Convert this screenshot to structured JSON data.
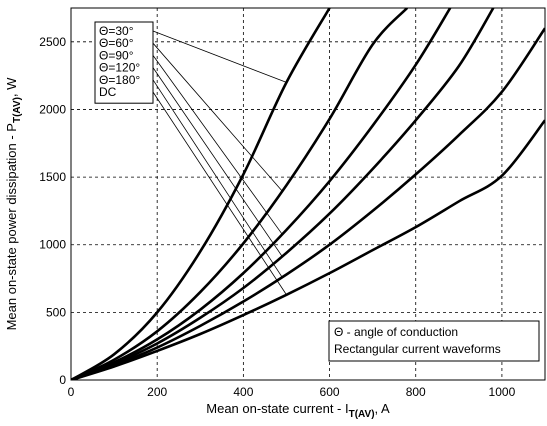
{
  "chart_data": {
    "type": "line",
    "xlabel_main": "Mean on-state current - I",
    "xlabel_sub": "T(AV)",
    "xlabel_unit": ", A",
    "ylabel_main": "Mean on-state power dissipation - P",
    "ylabel_sub": "T(AV)",
    "ylabel_unit": ", W",
    "xlim": [
      0,
      1100
    ],
    "ylim": [
      0,
      2750
    ],
    "xticks": [
      0,
      200,
      400,
      600,
      800,
      1000
    ],
    "yticks": [
      0,
      500,
      1000,
      1500,
      2000,
      2500
    ],
    "grid": true,
    "legend": {
      "position": "top-left",
      "entries": [
        "Θ=30°",
        "Θ=60°",
        "Θ=90°",
        "Θ=120°",
        "Θ=180°",
        "DC"
      ]
    },
    "annotation": {
      "position": "bottom-right",
      "lines": [
        "Θ - angle of conduction",
        "Rectangular current waveforms"
      ]
    },
    "series": [
      {
        "name": "Θ=30°",
        "x": [
          0,
          100,
          200,
          300,
          400,
          500,
          600
        ],
        "y": [
          0,
          190,
          500,
          950,
          1520,
          2200,
          2750
        ]
      },
      {
        "name": "Θ=60°",
        "x": [
          0,
          100,
          200,
          300,
          400,
          500,
          600,
          700,
          780
        ],
        "y": [
          0,
          150,
          360,
          650,
          1010,
          1440,
          1930,
          2480,
          2750
        ]
      },
      {
        "name": "Θ=90°",
        "x": [
          0,
          100,
          200,
          300,
          400,
          500,
          600,
          700,
          800,
          880
        ],
        "y": [
          0,
          130,
          300,
          520,
          790,
          1110,
          1470,
          1880,
          2330,
          2750
        ]
      },
      {
        "name": "Θ=120°",
        "x": [
          0,
          100,
          200,
          300,
          400,
          500,
          600,
          700,
          800,
          900,
          980
        ],
        "y": [
          0,
          120,
          270,
          460,
          680,
          940,
          1230,
          1560,
          1920,
          2320,
          2750
        ]
      },
      {
        "name": "Θ=180°",
        "x": [
          0,
          100,
          200,
          300,
          400,
          500,
          600,
          700,
          800,
          900,
          1000,
          1100
        ],
        "y": [
          0,
          110,
          240,
          400,
          580,
          780,
          1000,
          1250,
          1520,
          1810,
          2130,
          2600
        ]
      },
      {
        "name": "DC",
        "x": [
          0,
          100,
          200,
          300,
          400,
          500,
          600,
          700,
          800,
          900,
          1000,
          1100
        ],
        "y": [
          0,
          100,
          215,
          340,
          480,
          630,
          790,
          960,
          1130,
          1320,
          1510,
          1920
        ]
      }
    ],
    "leader_targets": [
      {
        "series": "Θ=30°",
        "x": 500
      },
      {
        "series": "Θ=60°",
        "x": 490
      },
      {
        "series": "Θ=90°",
        "x": 490
      },
      {
        "series": "Θ=120°",
        "x": 490
      },
      {
        "series": "Θ=180°",
        "x": 490
      },
      {
        "series": "DC",
        "x": 500
      }
    ]
  }
}
